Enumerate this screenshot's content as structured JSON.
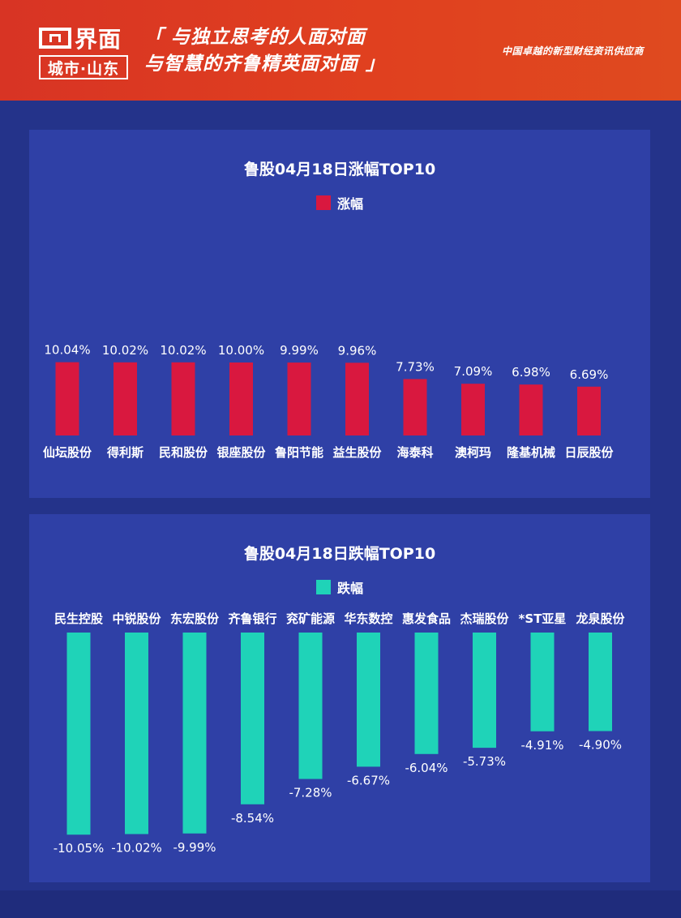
{
  "header": {
    "logo_name": "界面",
    "logo_sub": "城市·山东",
    "slogan_line1": "「 与独立思考的人面对面",
    "slogan_line2": "与智慧的齐鲁精英面对面 」",
    "tagline": "中国卓越的新型财经资讯供应商"
  },
  "colors": {
    "gain": "#d9183f",
    "loss": "#1fd3b8",
    "panel": "#2f40a6",
    "background": "#24338a",
    "header": "#df3d21"
  },
  "chart_data": [
    {
      "type": "bar",
      "title": "鲁股04月18日涨幅TOP10",
      "legend": "涨幅",
      "categories": [
        "仙坛股份",
        "得利斯",
        "民和股份",
        "银座股份",
        "鲁阳节能",
        "益生股份",
        "海泰科",
        "澳柯玛",
        "隆基机械",
        "日辰股份"
      ],
      "values": [
        10.04,
        10.02,
        10.02,
        10.0,
        9.99,
        9.96,
        7.73,
        7.09,
        6.98,
        6.69
      ],
      "labels": [
        "10.04%",
        "10.02%",
        "10.02%",
        "10.00%",
        "9.99%",
        "9.96%",
        "7.73%",
        "7.09%",
        "6.98%",
        "6.69%"
      ]
    },
    {
      "type": "bar",
      "title": "鲁股04月18日跌幅TOP10",
      "legend": "跌幅",
      "categories": [
        "民生控股",
        "中锐股份",
        "东宏股份",
        "齐鲁银行",
        "兖矿能源",
        "华东数控",
        "惠发食品",
        "杰瑞股份",
        "*ST亚星",
        "龙泉股份"
      ],
      "values": [
        -10.05,
        -10.02,
        -9.99,
        -8.54,
        -7.28,
        -6.67,
        -6.04,
        -5.73,
        -4.91,
        -4.9
      ],
      "labels": [
        "-10.05%",
        "-10.02%",
        "-9.99%",
        "-8.54%",
        "-7.28%",
        "-6.67%",
        "-6.04%",
        "-5.73%",
        "-4.91%",
        "-4.90%"
      ]
    }
  ]
}
